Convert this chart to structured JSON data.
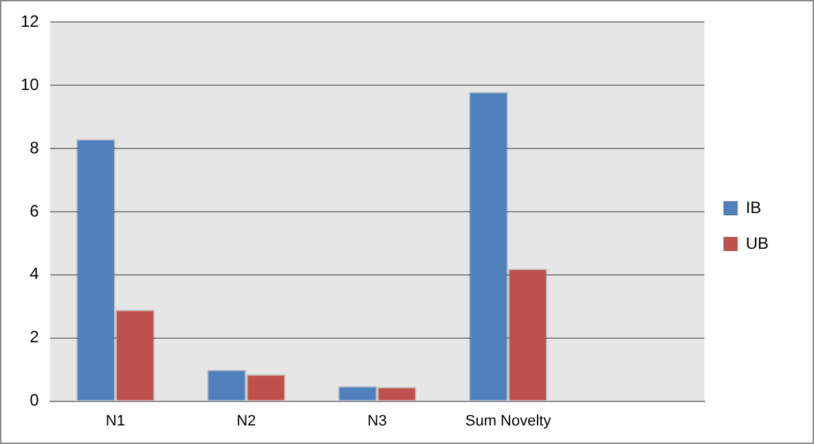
{
  "chart_data": {
    "type": "bar",
    "categories": [
      "N1",
      "N2",
      "N3",
      "Sum Novelty",
      null
    ],
    "series": [
      {
        "name": "IB",
        "color": "#4f81bd",
        "values": [
          8.3,
          1.0,
          0.48,
          9.8,
          null
        ]
      },
      {
        "name": "UB",
        "color": "#c0504d",
        "values": [
          2.9,
          0.85,
          0.45,
          4.2,
          null
        ]
      }
    ],
    "ylim": [
      0,
      12
    ],
    "yticks": [
      0,
      2,
      4,
      6,
      8,
      10,
      12
    ],
    "grid": "y",
    "legend": "right"
  }
}
